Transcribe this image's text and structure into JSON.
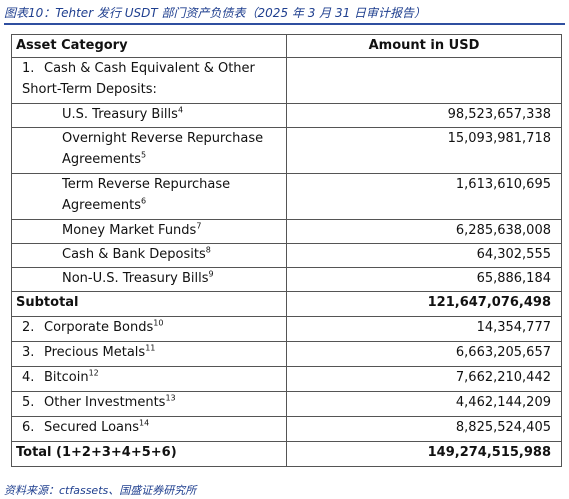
{
  "caption": "图表10：Tehter 发行 USDT 部门资产负债表（2025 年 3 月 31 日审计报告）",
  "source": "资料来源：ctfassets、国盛证券研究所",
  "headers": {
    "category": "Asset Category",
    "amount": "Amount in USD"
  },
  "section1": {
    "num": "1.",
    "label": "Cash & Cash Equivalent & Other Short-Term Deposits:"
  },
  "sub_items": [
    {
      "label": "U.S. Treasury Bills",
      "note": "4",
      "amount": "98,523,657,338"
    },
    {
      "label": "Overnight Reverse Repurchase Agreements",
      "note": "5",
      "amount": "15,093,981,718"
    },
    {
      "label": "Term Reverse Repurchase Agreements",
      "note": "6",
      "amount": "1,613,610,695"
    },
    {
      "label": "Money Market Funds",
      "note": "7",
      "amount": "6,285,638,008"
    },
    {
      "label": "Cash & Bank Deposits",
      "note": "8",
      "amount": "64,302,555"
    },
    {
      "label": "Non-U.S. Treasury Bills",
      "note": "9",
      "amount": "65,886,184"
    }
  ],
  "subtotal": {
    "label": "Subtotal",
    "amount": "121,647,076,498"
  },
  "items": [
    {
      "num": "2.",
      "label": "Corporate Bonds",
      "note": "10",
      "amount": "14,354,777"
    },
    {
      "num": "3.",
      "label": "Precious Metals",
      "note": "11",
      "amount": "6,663,205,657"
    },
    {
      "num": "4.",
      "label": "Bitcoin",
      "note": "12",
      "amount": "7,662,210,442"
    },
    {
      "num": "5.",
      "label": "Other Investments",
      "note": "13",
      "amount": "4,462,144,209"
    },
    {
      "num": "6.",
      "label": "Secured Loans",
      "note": "14",
      "amount": "8,825,524,405"
    }
  ],
  "total": {
    "label": "Total (1+2+3+4+5+6)",
    "amount": "149,274,515,988"
  }
}
